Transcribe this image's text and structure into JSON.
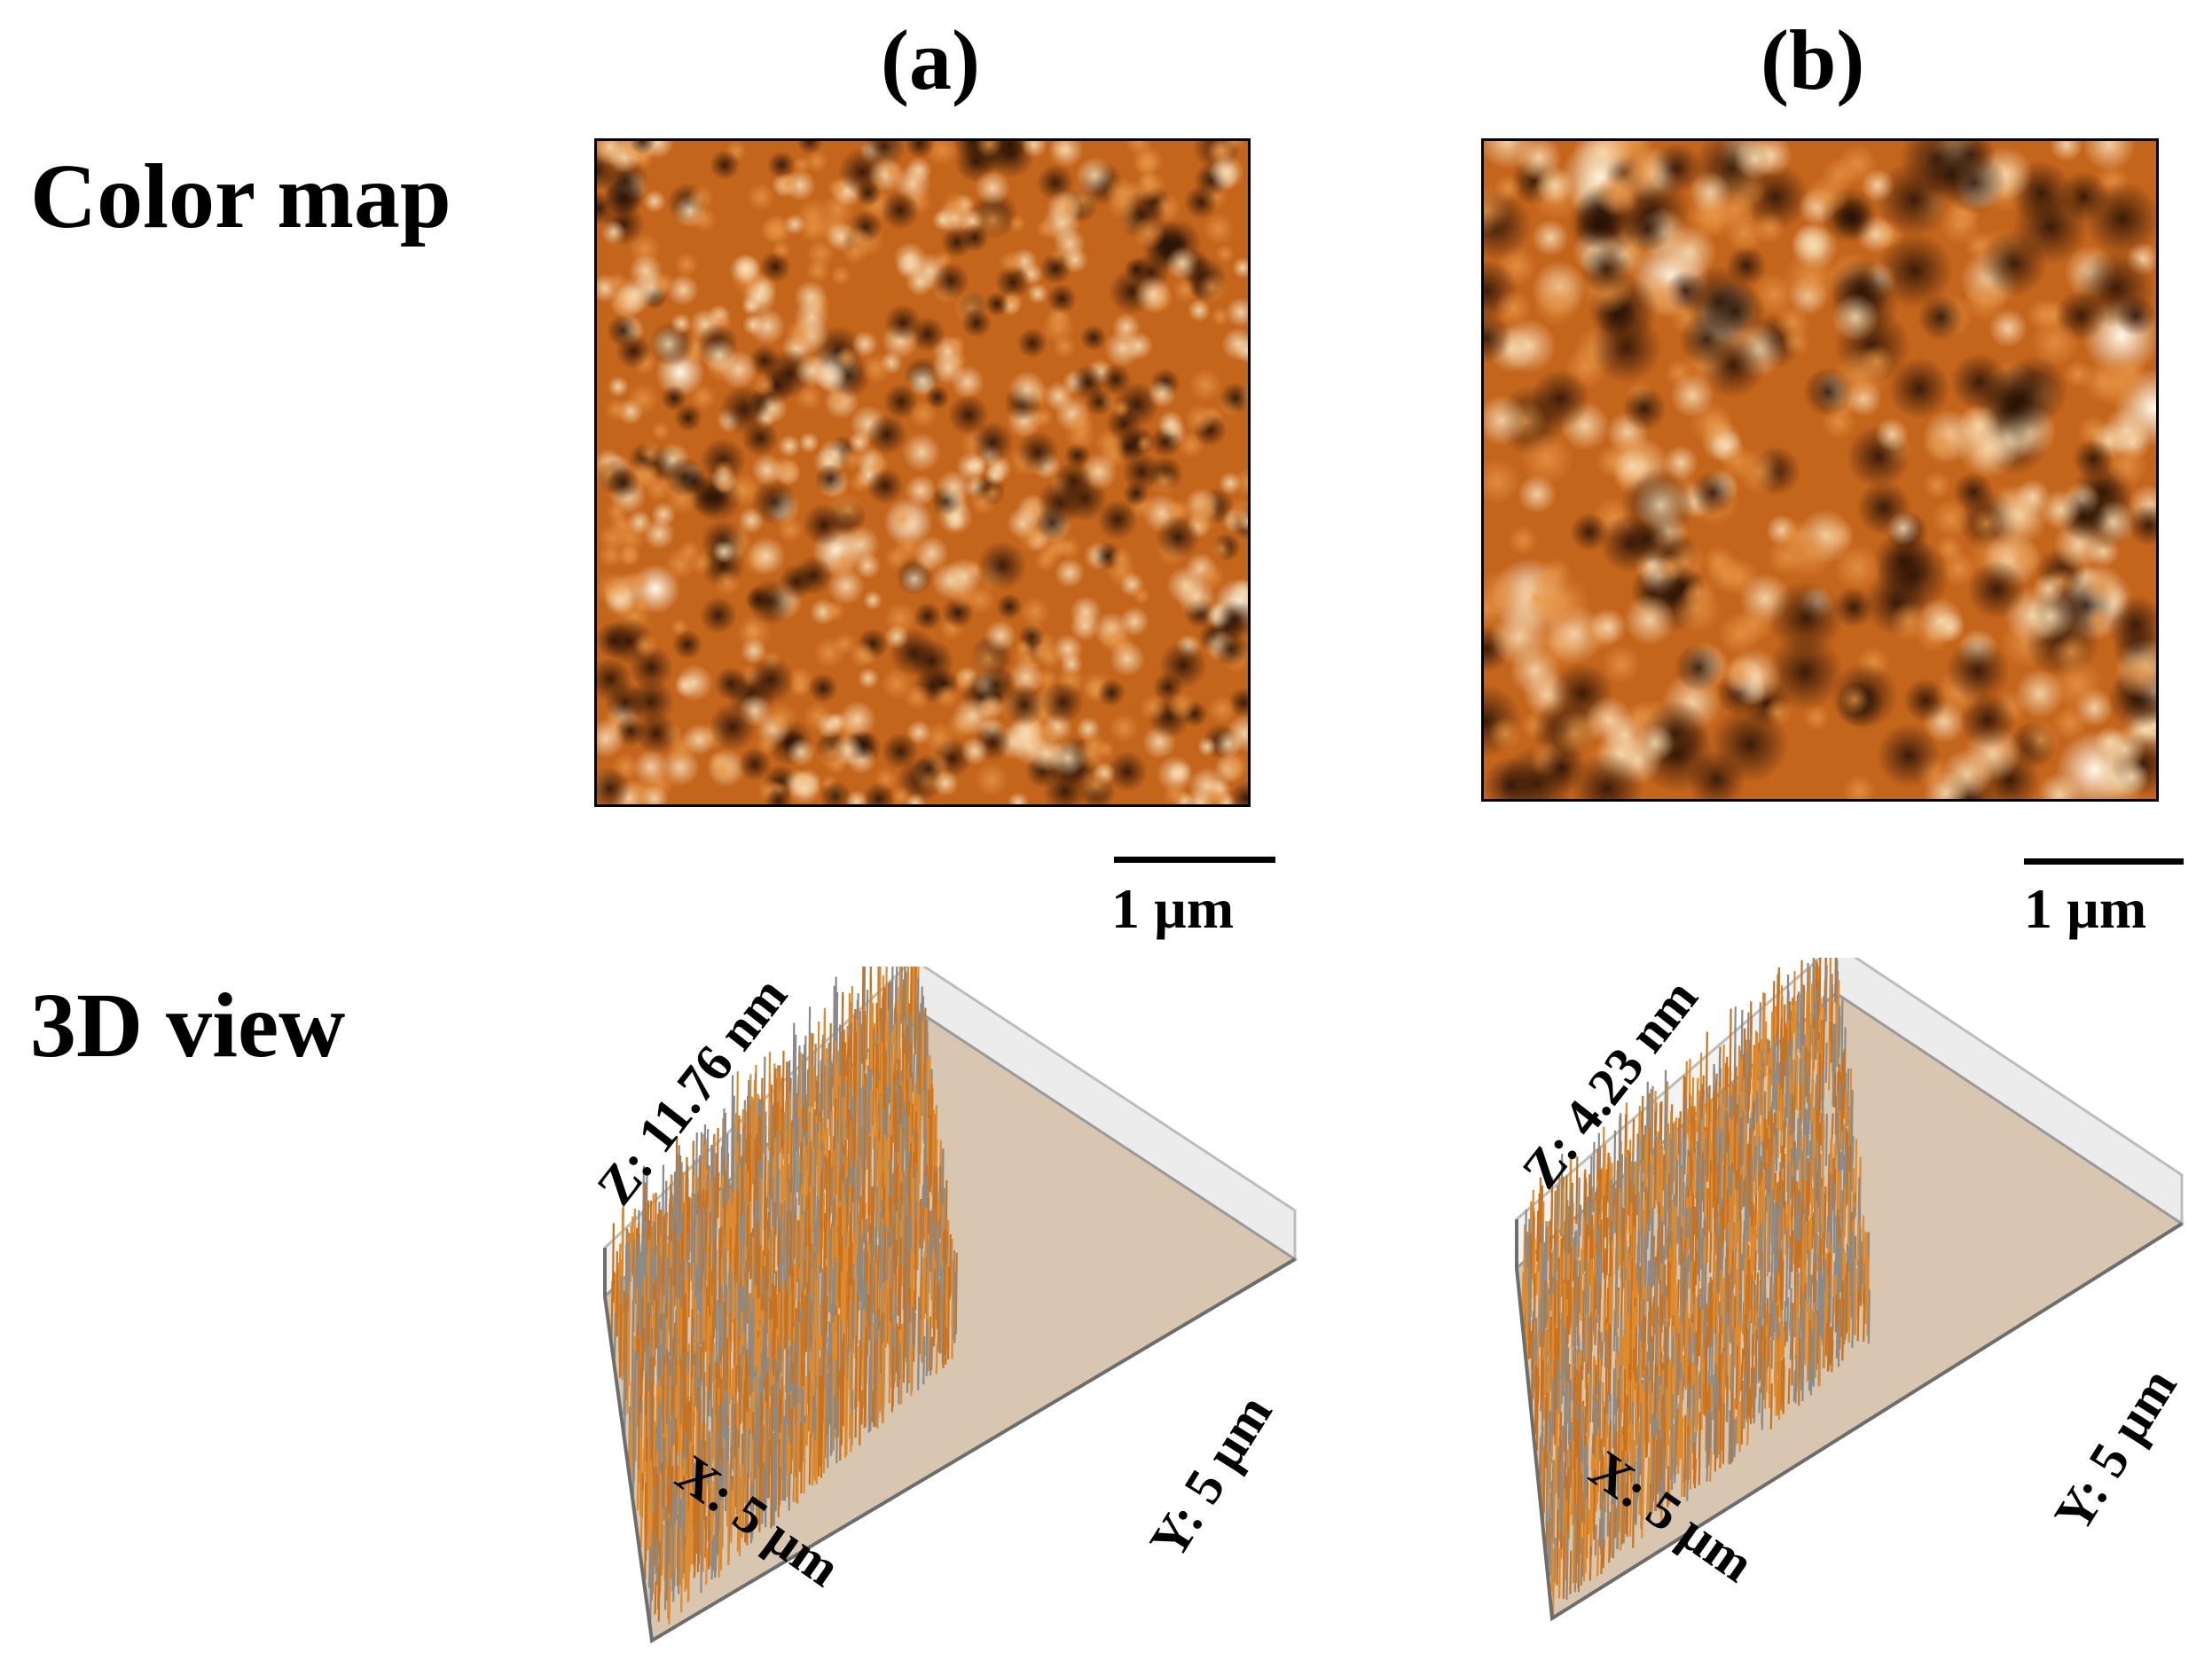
{
  "panels": [
    {
      "label": "(a)",
      "scale_bar": "1 µm",
      "z_axis": "Z: 11.76 nm",
      "x_axis": "X: 5 µm",
      "y_axis": "Y: 5 µm"
    },
    {
      "label": "(b)",
      "scale_bar": "1 µm",
      "z_axis": "Z: 4.23 nm",
      "x_axis": "X: 5 µm",
      "y_axis": "Y: 5 µm"
    }
  ],
  "rows": {
    "color_map": "Color map",
    "view_3d": "3D view"
  },
  "colors": {
    "base": "#c4651c",
    "highlight": "#fbe6c4",
    "shadow": "#2a1204",
    "spike": "#e08a2e",
    "box_line": "#bcbcbc"
  }
}
